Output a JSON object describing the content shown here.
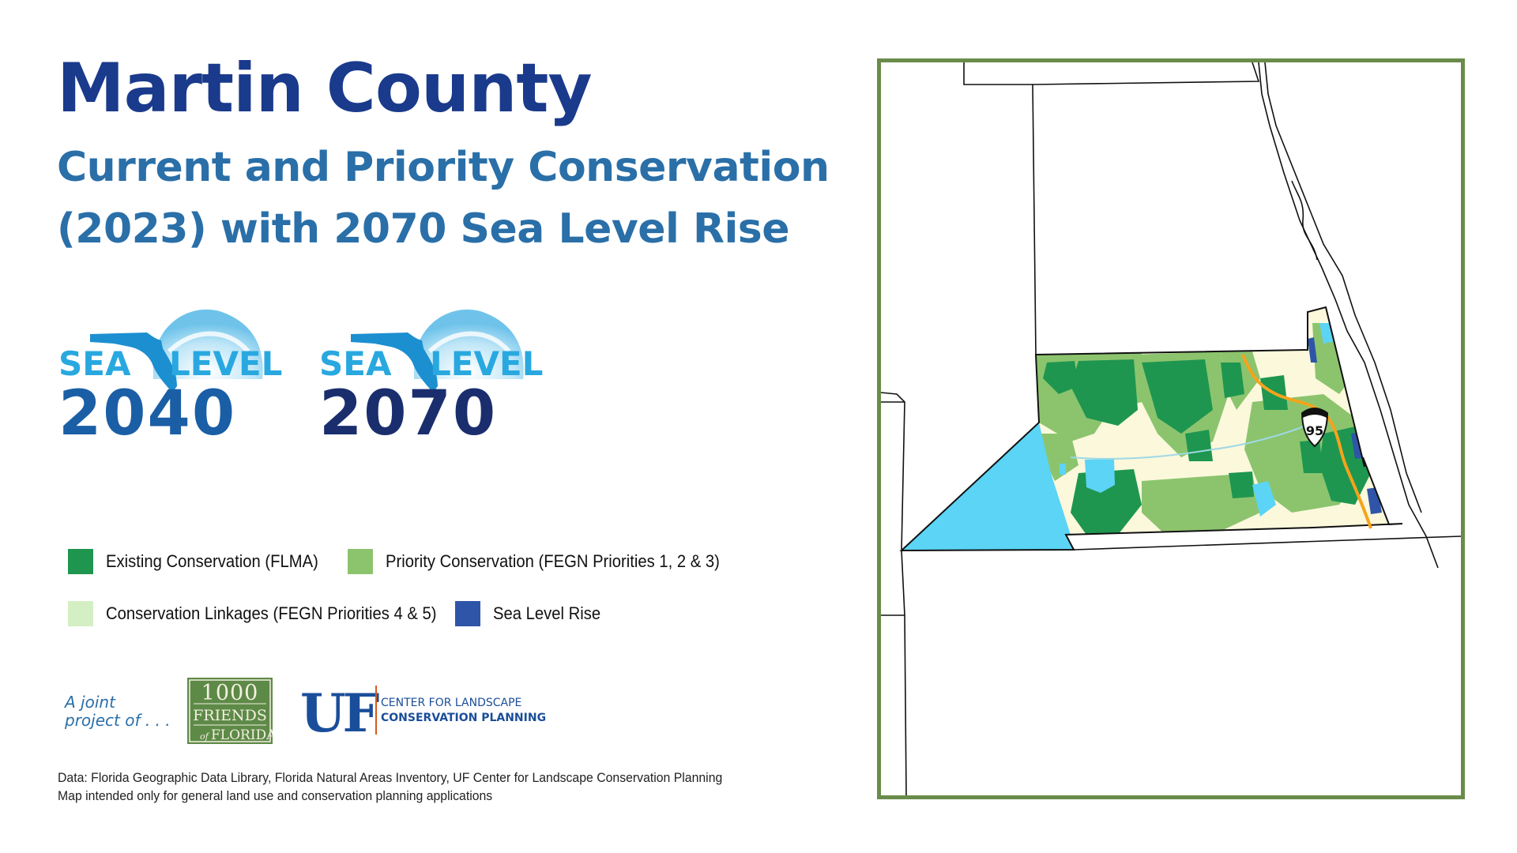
{
  "header": {
    "title": "Martin County",
    "subtitle_line1": "Current and Priority Conservation",
    "subtitle_line2": "(2023) with 2070 Sea Level Rise"
  },
  "logos": {
    "sea_level_2040": {
      "word1": "SEA",
      "word2": "LEVEL",
      "year": "2040"
    },
    "sea_level_2070": {
      "word1": "SEA",
      "word2": "LEVEL",
      "year": "2070"
    }
  },
  "legend": {
    "items": [
      {
        "label": "Existing Conservation (FLMA)",
        "color": "#1e9650"
      },
      {
        "label": "Priority Conservation (FEGN Priorities 1, 2 & 3)",
        "color": "#8cc46e"
      },
      {
        "label": "Conservation Linkages (FEGN Priorities 4 & 5)",
        "color": "#d4efc4"
      },
      {
        "label": "Sea Level Rise",
        "color": "#2f55a8"
      }
    ]
  },
  "credits": {
    "joint_line1": "A joint",
    "joint_line2": "project of . . .",
    "friends_logo": {
      "line1": "1000",
      "line2": "FRIENDS",
      "line3_small": "of",
      "line3": "FLORIDA"
    },
    "uf_logo": "UF",
    "clcp_line1": "CENTER FOR LANDSCAPE",
    "clcp_line2": "CONSERVATION PLANNING"
  },
  "source": {
    "line1": "Data: Florida Geographic Data Library, Florida Natural Areas Inventory, UF Center for Landscape Conservation Planning",
    "line2": "Map intended only for general land use and conservation planning applications"
  },
  "map": {
    "highway_shield": "95",
    "colors": {
      "frame": "#6a8c4a",
      "county_base": "#fbf8dc",
      "lake": "#5bd4f5",
      "highway": "#f5a31b",
      "existing_conservation": "#1e9650",
      "priority_conservation": "#8cc46e",
      "sea_level_rise": "#2f55a8"
    }
  }
}
